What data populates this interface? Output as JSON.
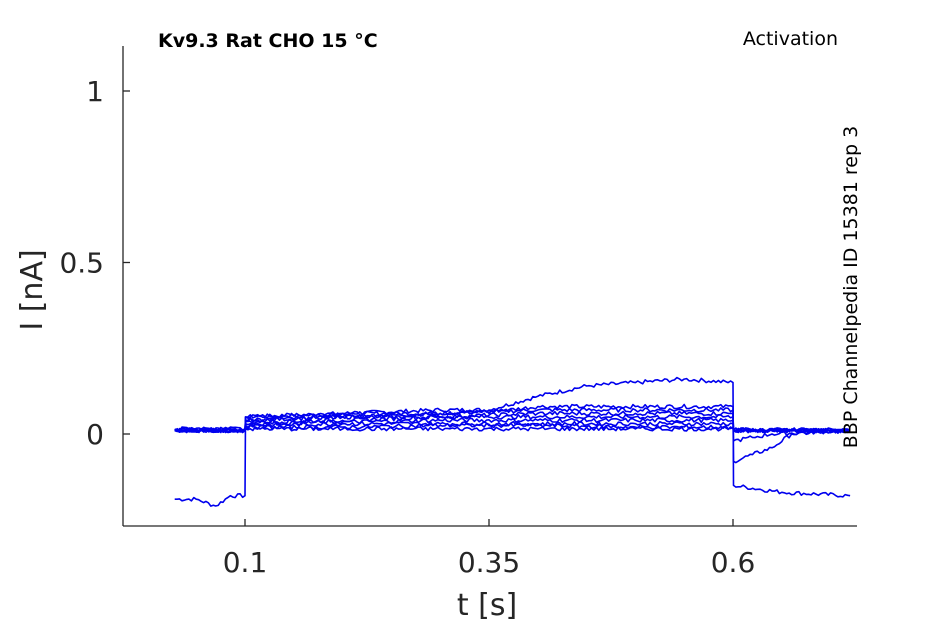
{
  "chart_data": {
    "type": "line",
    "title": "Kv9.3  Rat  CHO  15 °C",
    "subtitle": "Activation",
    "side_label": "BBP Channelpedia ID 15381 rep 3",
    "xlabel": "t [s]",
    "ylabel": "I [nA]",
    "xlim": [
      -0.0,
      0.75
    ],
    "ylim": [
      -0.27,
      1.13
    ],
    "x_ticks": [
      0.1,
      0.35,
      0.6
    ],
    "x_tick_labels": [
      "0.1",
      "0.35",
      "0.6"
    ],
    "y_ticks": [
      0,
      0.5,
      1
    ],
    "y_tick_labels": [
      "0",
      "0.5",
      "1"
    ],
    "grid": false,
    "color": "#0000ee",
    "series": [
      {
        "x": [
          0.028,
          0.05,
          0.07,
          0.085,
          0.1,
          0.1005,
          0.2,
          0.3,
          0.35,
          0.4,
          0.45,
          0.5,
          0.55,
          0.6,
          0.6005,
          0.65,
          0.72
        ],
        "y": [
          -0.19,
          -0.19,
          -0.21,
          -0.18,
          -0.18,
          0.05,
          0.06,
          0.07,
          0.07,
          0.11,
          0.14,
          0.15,
          0.16,
          0.15,
          -0.15,
          -0.17,
          -0.18
        ]
      },
      {
        "x": [
          0.028,
          0.1,
          0.1005,
          0.2,
          0.3,
          0.37,
          0.4,
          0.5,
          0.6,
          0.6005,
          0.62,
          0.64,
          0.66,
          0.72
        ],
        "y": [
          0.01,
          0.01,
          0.05,
          0.06,
          0.06,
          0.07,
          0.08,
          0.08,
          0.08,
          -0.08,
          -0.06,
          -0.04,
          0.0,
          0.01
        ]
      },
      {
        "x": [
          0.028,
          0.1,
          0.1005,
          0.2,
          0.3,
          0.4,
          0.5,
          0.6,
          0.6005,
          0.62,
          0.64,
          0.72
        ],
        "y": [
          0.01,
          0.01,
          0.04,
          0.05,
          0.06,
          0.07,
          0.07,
          0.07,
          -0.02,
          -0.01,
          0.0,
          0.01
        ]
      },
      {
        "x": [
          0.028,
          0.1,
          0.1005,
          0.2,
          0.3,
          0.4,
          0.5,
          0.6,
          0.6005,
          0.72
        ],
        "y": [
          0.015,
          0.015,
          0.04,
          0.05,
          0.05,
          0.06,
          0.06,
          0.06,
          0.01,
          0.01
        ]
      },
      {
        "x": [
          0.028,
          0.1,
          0.1005,
          0.2,
          0.3,
          0.4,
          0.5,
          0.6,
          0.6005,
          0.72
        ],
        "y": [
          0.01,
          0.01,
          0.035,
          0.04,
          0.05,
          0.05,
          0.05,
          0.05,
          0.01,
          0.01
        ]
      },
      {
        "x": [
          0.028,
          0.1,
          0.1005,
          0.2,
          0.3,
          0.4,
          0.5,
          0.6,
          0.6005,
          0.72
        ],
        "y": [
          0.01,
          0.01,
          0.03,
          0.035,
          0.04,
          0.04,
          0.04,
          0.04,
          0.01,
          0.01
        ]
      },
      {
        "x": [
          0.028,
          0.1,
          0.1005,
          0.2,
          0.3,
          0.4,
          0.5,
          0.6,
          0.6005,
          0.72
        ],
        "y": [
          0.012,
          0.012,
          0.025,
          0.03,
          0.03,
          0.03,
          0.03,
          0.03,
          0.012,
          0.012
        ]
      },
      {
        "x": [
          0.028,
          0.1,
          0.1005,
          0.2,
          0.3,
          0.4,
          0.5,
          0.6,
          0.6005,
          0.72
        ],
        "y": [
          0.01,
          0.01,
          0.02,
          0.02,
          0.025,
          0.025,
          0.02,
          0.02,
          0.01,
          0.01
        ]
      },
      {
        "x": [
          0.028,
          0.1,
          0.1005,
          0.2,
          0.3,
          0.4,
          0.5,
          0.6,
          0.6005,
          0.72
        ],
        "y": [
          0.012,
          0.012,
          0.015,
          0.015,
          0.015,
          0.015,
          0.015,
          0.015,
          0.012,
          0.012
        ]
      }
    ]
  }
}
